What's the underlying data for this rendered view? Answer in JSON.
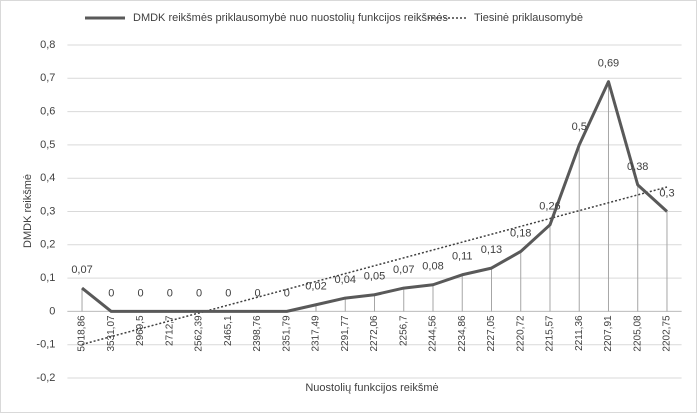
{
  "chart_data": {
    "type": "line",
    "x_label": "Nuostolių funkcijos reikšmė",
    "y_label": "DMDK reikšmė",
    "categories": [
      "5018,86",
      "3531,07",
      "2969,5",
      "2712,7",
      "2562,39",
      "2465,1",
      "2398,76",
      "2351,79",
      "2317,49",
      "2291,77",
      "2272,06",
      "2256,7",
      "2244,56",
      "2234,86",
      "2227,05",
      "2220,72",
      "2215,57",
      "2211,36",
      "2207,91",
      "2205,08",
      "2202,75"
    ],
    "series": [
      {
        "name": "DMDK reikšmės priklausomybė nuo nuostolių funkcijos reikšmės",
        "color": "#595959",
        "values": [
          0.07,
          0,
          0,
          0,
          0,
          0,
          0,
          0,
          0.02,
          0.04,
          0.05,
          0.07,
          0.08,
          0.11,
          0.13,
          0.18,
          0.26,
          0.5,
          0.69,
          0.38,
          0.3
        ],
        "value_labels": [
          "0,07",
          "0",
          "0",
          "0",
          "0",
          "0",
          "0",
          "0",
          "0,02",
          "0,04",
          "0,05",
          "0,07",
          "0,08",
          "0,11",
          "0,13",
          "0,18",
          "0,26",
          "0,5",
          "0,69",
          "0,38",
          "0,3"
        ]
      }
    ],
    "trendline": {
      "name": "Tiesinė priklausomybė",
      "color": "#404040"
    },
    "ylim": [
      -0.2,
      0.8
    ],
    "yticks": [
      {
        "value": -0.2,
        "label": "-0,2"
      },
      {
        "value": -0.1,
        "label": "-0,1"
      },
      0,
      {
        "value": 0.1,
        "label": "0,1"
      },
      {
        "value": 0.2,
        "label": "0,2"
      },
      {
        "value": 0.3,
        "label": "0,3"
      },
      {
        "value": 0.4,
        "label": "0,4"
      },
      {
        "value": 0.5,
        "label": "0,5"
      },
      {
        "value": 0.6,
        "label": "0,6"
      },
      {
        "value": 0.7,
        "label": "0,7"
      },
      {
        "value": 0.8,
        "label": "0,8"
      }
    ],
    "grid": true
  }
}
